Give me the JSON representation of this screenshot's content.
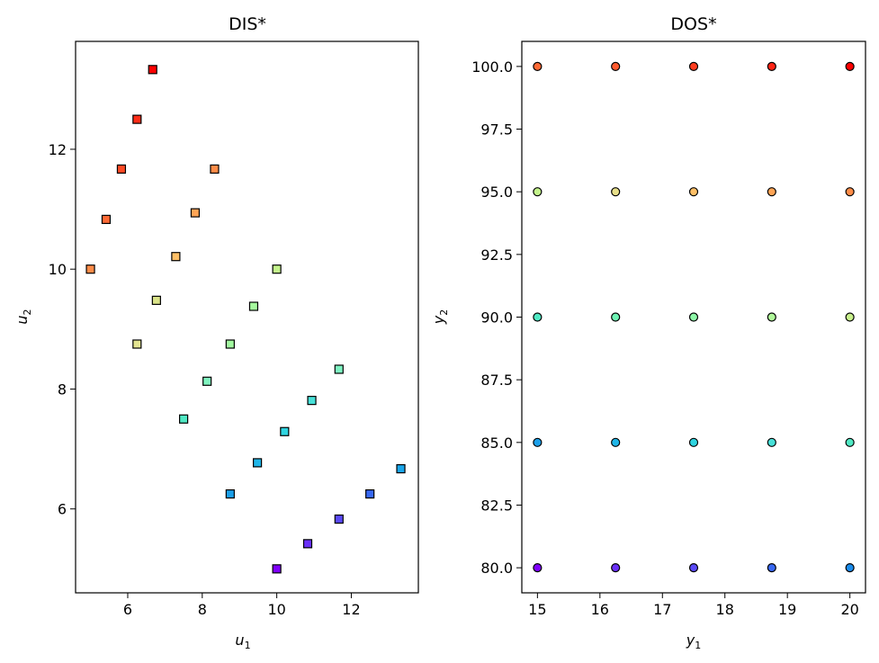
{
  "chart_data": [
    {
      "type": "scatter",
      "title": "DIS*",
      "xlabel": "u",
      "xlabel_sub": "1",
      "ylabel": "u",
      "ylabel_sub": "2",
      "xlim": [
        4.6,
        13.8
      ],
      "ylim": [
        4.6,
        13.8
      ],
      "xticks": [
        6,
        8,
        10,
        12
      ],
      "yticks": [
        6,
        8,
        10,
        12
      ],
      "xtick_labels": [
        "6",
        "8",
        "10",
        "12"
      ],
      "ytick_labels": [
        "6",
        "8",
        "10",
        "12"
      ],
      "marker": "square",
      "edgecolor": "#000000",
      "grid": false,
      "points": [
        {
          "x": 6.67,
          "y": 13.33,
          "color": "#ff0000"
        },
        {
          "x": 6.25,
          "y": 12.5,
          "color": "#ff2d17"
        },
        {
          "x": 5.83,
          "y": 11.67,
          "color": "#ff4a25"
        },
        {
          "x": 8.33,
          "y": 11.67,
          "color": "#ff8c48"
        },
        {
          "x": 5.42,
          "y": 10.83,
          "color": "#ff6a36"
        },
        {
          "x": 7.81,
          "y": 10.94,
          "color": "#ffa455"
        },
        {
          "x": 5.0,
          "y": 10.0,
          "color": "#ff8c48"
        },
        {
          "x": 7.29,
          "y": 10.21,
          "color": "#ffc067"
        },
        {
          "x": 10.0,
          "y": 10.0,
          "color": "#c4f48c"
        },
        {
          "x": 6.77,
          "y": 9.48,
          "color": "#dbe48a"
        },
        {
          "x": 9.38,
          "y": 9.38,
          "color": "#a6fa9e"
        },
        {
          "x": 6.25,
          "y": 8.75,
          "color": "#e3e491"
        },
        {
          "x": 8.75,
          "y": 8.75,
          "color": "#a2f9a0"
        },
        {
          "x": 11.67,
          "y": 8.33,
          "color": "#7ef4c2"
        },
        {
          "x": 8.13,
          "y": 8.13,
          "color": "#80f4bf"
        },
        {
          "x": 10.94,
          "y": 7.81,
          "color": "#47e0d8"
        },
        {
          "x": 7.5,
          "y": 7.5,
          "color": "#50e9c4"
        },
        {
          "x": 10.21,
          "y": 7.29,
          "color": "#2fd4e0"
        },
        {
          "x": 9.48,
          "y": 6.77,
          "color": "#20b6e8"
        },
        {
          "x": 13.33,
          "y": 6.67,
          "color": "#1aa6ea"
        },
        {
          "x": 8.75,
          "y": 6.25,
          "color": "#1b9fe9"
        },
        {
          "x": 12.5,
          "y": 6.25,
          "color": "#3868f2"
        },
        {
          "x": 11.67,
          "y": 5.83,
          "color": "#5a4af6"
        },
        {
          "x": 10.83,
          "y": 5.42,
          "color": "#6a30f8"
        },
        {
          "x": 10.0,
          "y": 5.0,
          "color": "#8000ff"
        }
      ]
    },
    {
      "type": "scatter",
      "title": "DOS*",
      "xlabel": "y",
      "xlabel_sub": "1",
      "ylabel": "y",
      "ylabel_sub": "2",
      "xlim": [
        14.75,
        20.25
      ],
      "ylim": [
        79.0,
        101.0
      ],
      "xticks": [
        15,
        16,
        17,
        18,
        19,
        20
      ],
      "yticks": [
        80.0,
        82.5,
        85.0,
        87.5,
        90.0,
        92.5,
        95.0,
        97.5,
        100.0
      ],
      "xtick_labels": [
        "15",
        "16",
        "17",
        "18",
        "19",
        "20"
      ],
      "ytick_labels": [
        "80.0",
        "82.5",
        "85.0",
        "87.5",
        "90.0",
        "92.5",
        "95.0",
        "97.5",
        "100.0"
      ],
      "marker": "circle",
      "edgecolor": "#000000",
      "grid": false,
      "points": [
        {
          "x": 15.0,
          "y": 100.0,
          "color": "#ff6a36"
        },
        {
          "x": 16.25,
          "y": 100.0,
          "color": "#ff5a2e"
        },
        {
          "x": 17.5,
          "y": 100.0,
          "color": "#ff3d1f"
        },
        {
          "x": 18.75,
          "y": 100.0,
          "color": "#ff2414"
        },
        {
          "x": 20.0,
          "y": 100.0,
          "color": "#ff0000"
        },
        {
          "x": 15.0,
          "y": 95.0,
          "color": "#c4f48c"
        },
        {
          "x": 16.25,
          "y": 95.0,
          "color": "#e8e08a"
        },
        {
          "x": 17.5,
          "y": 95.0,
          "color": "#ffc067"
        },
        {
          "x": 18.75,
          "y": 95.0,
          "color": "#ffa455"
        },
        {
          "x": 20.0,
          "y": 95.0,
          "color": "#ff8c48"
        },
        {
          "x": 15.0,
          "y": 90.0,
          "color": "#50e9c4"
        },
        {
          "x": 16.25,
          "y": 90.0,
          "color": "#6ef4b4"
        },
        {
          "x": 17.5,
          "y": 90.0,
          "color": "#8ef8a8"
        },
        {
          "x": 18.75,
          "y": 90.0,
          "color": "#b0f89a"
        },
        {
          "x": 20.0,
          "y": 90.0,
          "color": "#c8f08c"
        },
        {
          "x": 15.0,
          "y": 85.0,
          "color": "#1b9fe9"
        },
        {
          "x": 16.25,
          "y": 85.0,
          "color": "#20b6e8"
        },
        {
          "x": 17.5,
          "y": 85.0,
          "color": "#2fd4e0"
        },
        {
          "x": 18.75,
          "y": 85.0,
          "color": "#47e0d8"
        },
        {
          "x": 20.0,
          "y": 85.0,
          "color": "#50e9c4"
        },
        {
          "x": 15.0,
          "y": 80.0,
          "color": "#8000ff"
        },
        {
          "x": 16.25,
          "y": 80.0,
          "color": "#6a30f8"
        },
        {
          "x": 17.5,
          "y": 80.0,
          "color": "#5a4af6"
        },
        {
          "x": 18.75,
          "y": 80.0,
          "color": "#3868f2"
        },
        {
          "x": 20.0,
          "y": 80.0,
          "color": "#1a8cec"
        }
      ]
    }
  ]
}
